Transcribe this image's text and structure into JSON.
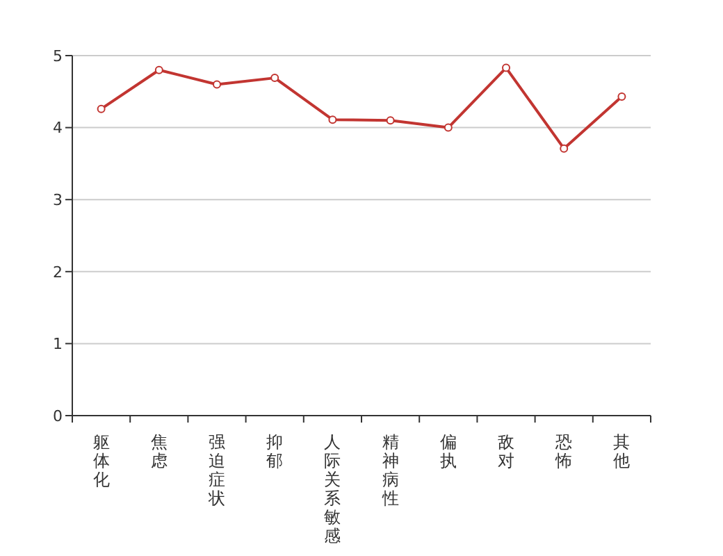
{
  "chart_data": {
    "type": "line",
    "categories": [
      "躯体化",
      "焦虑",
      "强迫症状",
      "抑郁",
      "人际关系敏感",
      "精神病性",
      "偏执",
      "敌对",
      "恐怖",
      "其他"
    ],
    "values": [
      4.26,
      4.8,
      4.6,
      4.69,
      4.11,
      4.1,
      4.0,
      4.83,
      3.71,
      4.43
    ],
    "color": "#c23531",
    "ylim": [
      0,
      5
    ],
    "yticks": [
      0,
      1,
      2,
      3,
      4,
      5
    ],
    "grid": "y",
    "marker": "circle",
    "line_style": "solid"
  }
}
